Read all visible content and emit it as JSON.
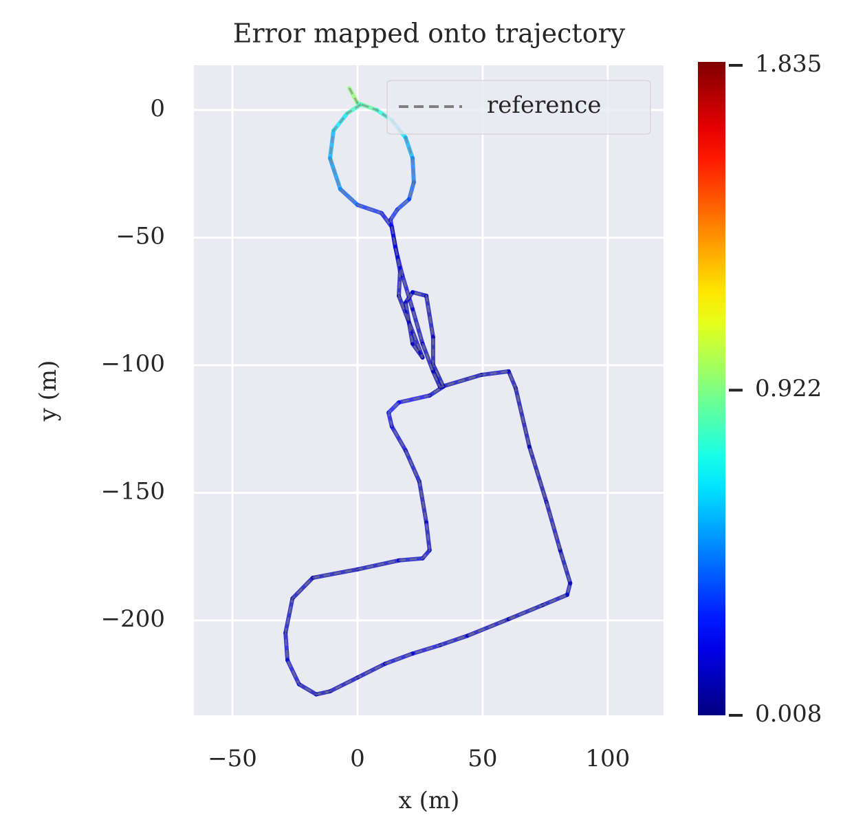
{
  "chart_data": {
    "type": "trajectory",
    "title": "Error mapped onto trajectory",
    "xlabel": "x (m)",
    "ylabel": "y (m)",
    "xlim": [
      -65.4,
      122.3
    ],
    "ylim": [
      -237.2,
      17.5
    ],
    "xticks": [
      {
        "value": -50,
        "label": "−50"
      },
      0,
      50,
      100
    ],
    "yticks": [
      0,
      {
        "value": -50,
        "label": "−50"
      },
      {
        "value": -100,
        "label": "−100"
      },
      {
        "value": -150,
        "label": "−150"
      },
      {
        "value": -200,
        "label": "−200"
      }
    ],
    "grid": true,
    "legend": "upper right",
    "colormap": "jet",
    "clim": [
      0.008,
      1.835
    ],
    "cticks": [
      0.008,
      0.922,
      1.835
    ],
    "x": [
      -3.3,
      0,
      7.7,
      13.7,
      19.2,
      22,
      22.5,
      20.6,
      15.9,
      13.2,
      15.1,
      17.9,
      22,
      26,
      30.2,
      33,
      49.5,
      60.4,
      63.2,
      68.7,
      75.5,
      81,
      85,
      83.8,
      74,
      60.4,
      44,
      33,
      22,
      11,
      0,
      -11,
      -16.5,
      -23.4,
      -28,
      -28.8,
      -26,
      -17.9,
      0,
      16.5,
      26,
      28.8,
      27.5,
      24.7,
      19.2,
      13.7,
      12.4,
      16.5,
      28.8,
      34.3,
      30.2,
      30.2,
      27.5,
      22,
      19.2,
      22,
      26,
      16.5,
      17,
      13.7,
      9.6,
      0,
      -6.9,
      -11,
      -9.6,
      -4.1,
      1.4
    ],
    "y": [
      8.6,
      2.7,
      0,
      -4,
      -10.8,
      -18.9,
      -28.3,
      -35,
      -39,
      -43,
      -53.9,
      -64.7,
      -78,
      -91.6,
      -102.4,
      -108.6,
      -103.8,
      -102.4,
      -109,
      -132,
      -153.6,
      -172.5,
      -185.4,
      -190,
      -194,
      -199.5,
      -206,
      -209.7,
      -213,
      -217,
      -222.4,
      -227.8,
      -229,
      -225,
      -215.6,
      -204.9,
      -191.4,
      -183.3,
      -180,
      -176.5,
      -175.7,
      -172.5,
      -161.7,
      -145.6,
      -133.4,
      -124,
      -118.6,
      -114.6,
      -111.9,
      -108.4,
      -99.7,
      -89,
      -72.8,
      -71.4,
      -75.5,
      -91.6,
      -97,
      -72.8,
      -63.3,
      -45.8,
      -40.4,
      -37.2,
      -31,
      -18.9,
      -8.1,
      -1.3,
      2.2
    ],
    "error": [
      0.95,
      0.85,
      0.75,
      0.65,
      0.55,
      0.45,
      0.4,
      0.35,
      0.3,
      0.25,
      0.2,
      0.15,
      0.12,
      0.1,
      0.1,
      0.1,
      0.12,
      0.1,
      0.08,
      0.08,
      0.1,
      0.1,
      0.12,
      0.12,
      0.1,
      0.1,
      0.12,
      0.15,
      0.15,
      0.12,
      0.12,
      0.1,
      0.12,
      0.15,
      0.15,
      0.12,
      0.1,
      0.1,
      0.12,
      0.15,
      0.15,
      0.12,
      0.1,
      0.12,
      0.15,
      0.2,
      0.25,
      0.2,
      0.12,
      0.1,
      0.1,
      0.1,
      0.12,
      0.12,
      0.12,
      0.1,
      0.1,
      0.12,
      0.15,
      0.2,
      0.3,
      0.4,
      0.5,
      0.55,
      0.65,
      0.8,
      0.9
    ],
    "series": [
      {
        "name": "reference",
        "color": "#808080",
        "dash": true
      }
    ]
  }
}
